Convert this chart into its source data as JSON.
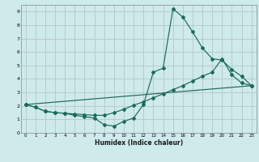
{
  "xlabel": "Humidex (Indice chaleur)",
  "bg_color": "#ceeaea",
  "grid_color": "#b8cccc",
  "line_color": "#1a6b5a",
  "xlim": [
    -0.5,
    23.5
  ],
  "ylim": [
    0,
    9.5
  ],
  "xticks": [
    0,
    1,
    2,
    3,
    4,
    5,
    6,
    7,
    8,
    9,
    10,
    11,
    12,
    13,
    14,
    15,
    16,
    17,
    18,
    19,
    20,
    21,
    22,
    23
  ],
  "yticks": [
    0,
    1,
    2,
    3,
    4,
    5,
    6,
    7,
    8,
    9
  ],
  "line1_x": [
    0,
    1,
    2,
    3,
    4,
    5,
    6,
    7,
    8,
    9,
    10,
    11,
    12,
    13,
    14,
    15,
    16,
    17,
    18,
    19,
    20,
    21,
    22,
    23
  ],
  "line1_y": [
    2.1,
    1.9,
    1.6,
    1.5,
    1.45,
    1.3,
    1.2,
    1.1,
    0.6,
    0.5,
    0.85,
    1.1,
    2.1,
    4.5,
    4.8,
    9.2,
    8.6,
    7.5,
    6.3,
    5.5,
    5.4,
    4.7,
    4.2,
    3.5
  ],
  "line2_x": [
    0,
    1,
    2,
    3,
    4,
    5,
    6,
    7,
    8,
    9,
    10,
    11,
    12,
    13,
    14,
    15,
    16,
    17,
    18,
    19,
    20,
    21,
    22,
    23
  ],
  "line2_y": [
    2.1,
    1.9,
    1.6,
    1.5,
    1.45,
    1.4,
    1.35,
    1.3,
    1.3,
    1.5,
    1.75,
    2.05,
    2.3,
    2.6,
    2.9,
    3.2,
    3.5,
    3.85,
    4.2,
    4.5,
    5.5,
    4.3,
    3.7,
    3.5
  ],
  "line3_x": [
    0,
    23
  ],
  "line3_y": [
    2.1,
    3.5
  ]
}
